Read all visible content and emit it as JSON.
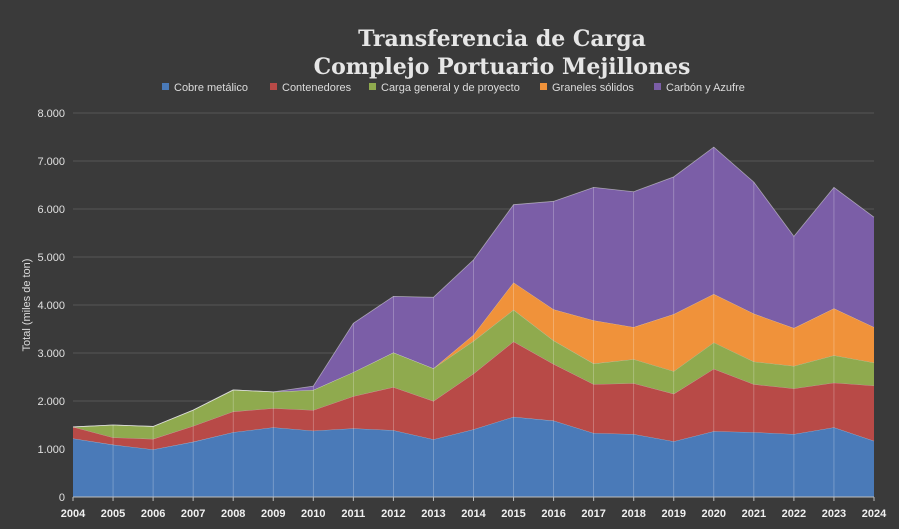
{
  "chart_data": {
    "type": "area",
    "stacked": true,
    "title": "Transferencia de Carga",
    "subtitle": "Complejo Portuario Mejillones",
    "xlabel": "",
    "ylabel": "Total (miles de ton)",
    "ylim": [
      0,
      8000
    ],
    "yticks": [
      "0",
      "1.000",
      "2.000",
      "3.000",
      "4.000",
      "5.000",
      "6.000",
      "7.000",
      "8.000"
    ],
    "grid": true,
    "legend_position": "top",
    "categories": [
      "2004",
      "2005",
      "2006",
      "2007",
      "2008",
      "2009",
      "2010",
      "2011",
      "2012",
      "2013",
      "2014",
      "2015",
      "2016",
      "2017",
      "2018",
      "2019",
      "2020",
      "2021",
      "2022",
      "2023",
      "2024"
    ],
    "series": [
      {
        "name": "Cobre metálico",
        "color": "#4a7ab8",
        "values": [
          1220,
          1090,
          990,
          1150,
          1350,
          1450,
          1380,
          1430,
          1390,
          1200,
          1410,
          1670,
          1590,
          1330,
          1310,
          1160,
          1370,
          1350,
          1310,
          1450,
          1170
        ]
      },
      {
        "name": "Contenedores",
        "color": "#b84a47",
        "values": [
          240,
          150,
          220,
          330,
          430,
          400,
          430,
          670,
          900,
          800,
          1160,
          1570,
          1180,
          1020,
          1060,
          990,
          1300,
          1000,
          950,
          930,
          1150
        ]
      },
      {
        "name": "Carga general y de proyecto",
        "color": "#8faa4e",
        "values": [
          0,
          260,
          260,
          330,
          450,
          340,
          420,
          500,
          720,
          680,
          680,
          660,
          490,
          430,
          500,
          470,
          550,
          470,
          470,
          570,
          480
        ]
      },
      {
        "name": "Graneles sólidos",
        "color": "#f0923a",
        "values": [
          0,
          0,
          0,
          0,
          0,
          0,
          0,
          0,
          0,
          0,
          130,
          570,
          650,
          900,
          670,
          1190,
          1010,
          1000,
          790,
          980,
          740
        ]
      },
      {
        "name": "Carbón y Azufre",
        "color": "#7b5ea7",
        "values": [
          0,
          0,
          0,
          0,
          0,
          0,
          80,
          1020,
          1170,
          1480,
          1560,
          1620,
          2250,
          2770,
          2820,
          2860,
          3060,
          2740,
          1910,
          2520,
          2290
        ]
      }
    ]
  }
}
